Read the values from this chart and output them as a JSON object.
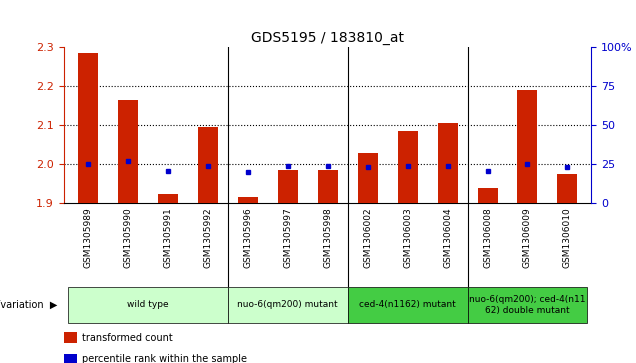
{
  "title": "GDS5195 / 183810_at",
  "samples": [
    "GSM1305989",
    "GSM1305990",
    "GSM1305991",
    "GSM1305992",
    "GSM1305996",
    "GSM1305997",
    "GSM1305998",
    "GSM1306002",
    "GSM1306003",
    "GSM1306004",
    "GSM1306008",
    "GSM1306009",
    "GSM1306010"
  ],
  "transformed_count": [
    2.285,
    2.165,
    1.925,
    2.095,
    1.915,
    1.985,
    1.985,
    2.03,
    2.085,
    2.105,
    1.94,
    2.19,
    1.975
  ],
  "percentile_rank": [
    25,
    27,
    21,
    24,
    20,
    24,
    24,
    23,
    24,
    24,
    21,
    25,
    23
  ],
  "ymin": 1.9,
  "ymax": 2.3,
  "y2min": 0,
  "y2max": 100,
  "yticks": [
    1.9,
    2.0,
    2.1,
    2.2,
    2.3
  ],
  "y2ticks": [
    0,
    25,
    50,
    75,
    100
  ],
  "bar_color": "#cc2200",
  "dot_color": "#0000cc",
  "group_spans": [
    {
      "label": "wild type",
      "start": 0,
      "end": 3,
      "color": "#ccffcc"
    },
    {
      "label": "nuo-6(qm200) mutant",
      "start": 4,
      "end": 6,
      "color": "#ccffcc"
    },
    {
      "label": "ced-4(n1162) mutant",
      "start": 7,
      "end": 9,
      "color": "#44cc44"
    },
    {
      "label": "nuo-6(qm200); ced-4(n11\n62) double mutant",
      "start": 10,
      "end": 12,
      "color": "#44cc44"
    }
  ],
  "group_separator_indices": [
    3,
    6,
    9
  ],
  "legend_items": [
    {
      "color": "#cc2200",
      "label": "transformed count"
    },
    {
      "color": "#0000cc",
      "label": "percentile rank within the sample"
    }
  ],
  "bg_color": "#d8d8d8",
  "plot_bg": "#ffffff"
}
